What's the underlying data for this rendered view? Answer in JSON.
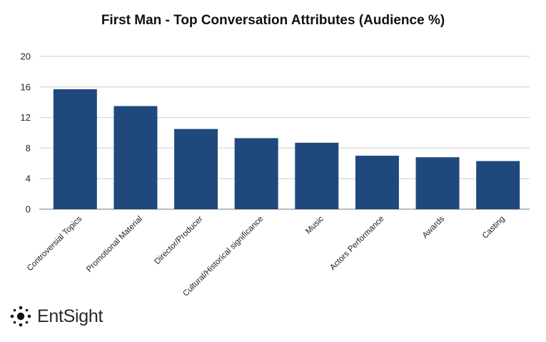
{
  "chart_data": {
    "type": "bar",
    "title": "First Man - Top Conversation Attributes (Audience %)",
    "categories": [
      "Controversial Topics",
      "Promotional Material",
      "Director/Producer",
      "Cultural/Historical significance",
      "Music",
      "Actors Performance",
      "Awards",
      "Casting"
    ],
    "values": [
      15.7,
      13.5,
      10.5,
      9.3,
      8.7,
      7.0,
      6.8,
      6.3
    ],
    "ylim": [
      0,
      20
    ],
    "yticks": [
      "0",
      "4",
      "8",
      "12",
      "16",
      "20"
    ],
    "xlabel": "",
    "ylabel": "",
    "grid": true,
    "bar_color": "#1f497d"
  },
  "logo": {
    "text": "EntSight"
  }
}
